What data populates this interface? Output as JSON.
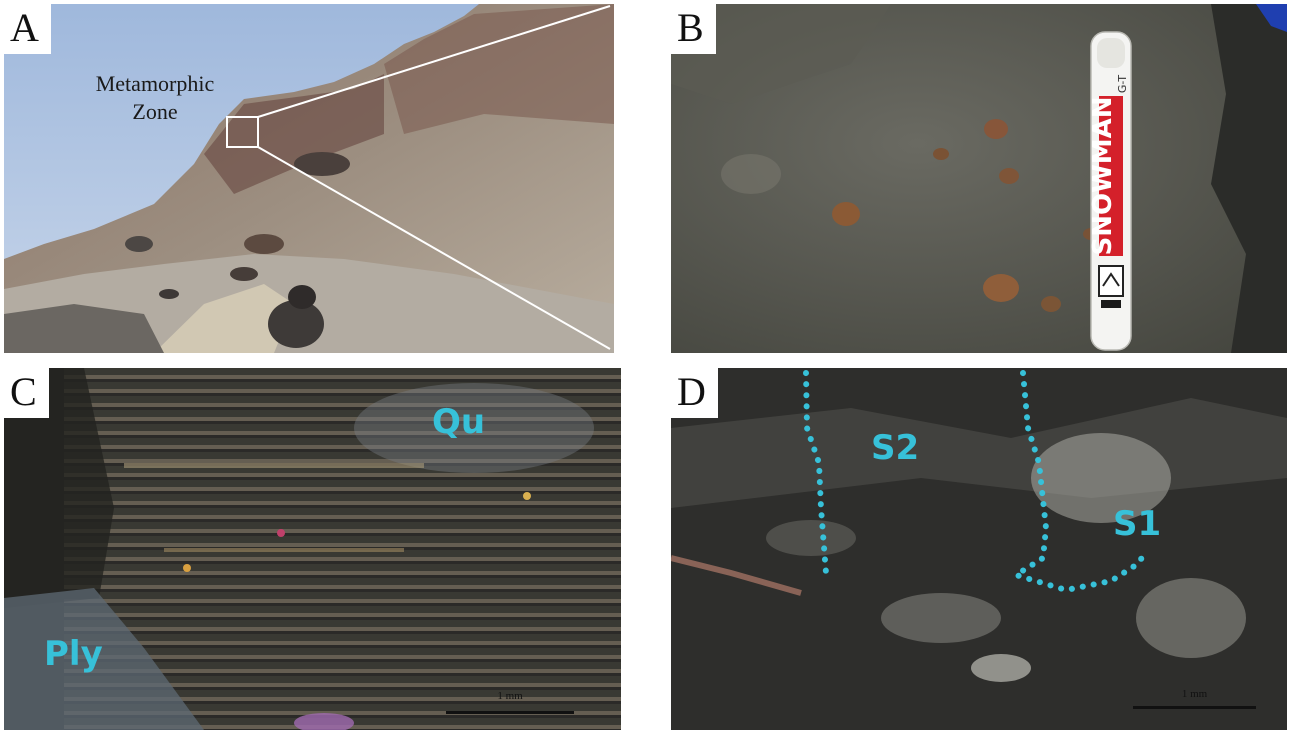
{
  "panels": {
    "a": {
      "letter": "A",
      "label_line1": "Metamorphic",
      "label_line2": "Zone"
    },
    "b": {
      "letter": "B",
      "pen_brand": "SNOWMAN",
      "pen_code": "G-T"
    },
    "c": {
      "letter": "C",
      "mineral_1": "Qu",
      "mineral_2": "Ply",
      "scale": "1 mm"
    },
    "d": {
      "letter": "D",
      "fabric_1": "S2",
      "fabric_2": "S1",
      "scale": "1 mm"
    }
  },
  "colors": {
    "annotation_cyan": "#37c1d9",
    "background": "#ffffff"
  }
}
